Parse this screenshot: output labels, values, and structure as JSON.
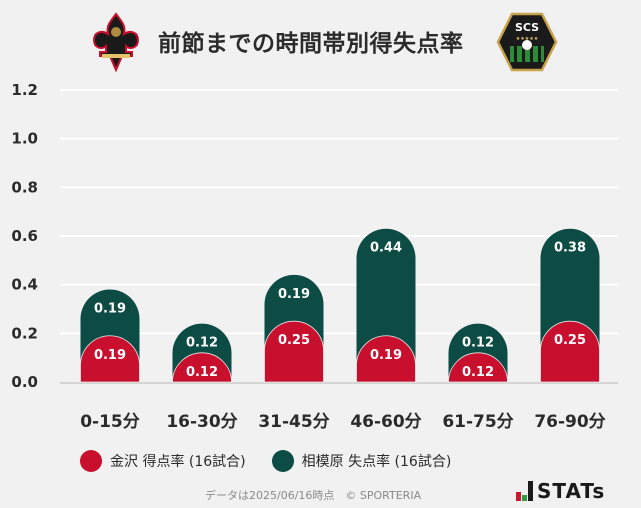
{
  "header": {
    "title": "前節までの時間帯別得失点率",
    "home_logo": "zweigen-kanazawa-crest-icon",
    "away_logo": "sc-sagamihara-crest-icon"
  },
  "colors": {
    "background": "#f1f1f1",
    "home": "#c8102e",
    "away": "#0d4b45",
    "grid": "#ffffff",
    "baseline": "#d4d4d4"
  },
  "chart_data": {
    "type": "bar",
    "title": "前節までの時間帯別得失点率",
    "xlabel": "",
    "ylabel": "",
    "ylim": [
      0,
      1.2
    ],
    "yticks": [
      "0.0",
      "0.2",
      "0.4",
      "0.6",
      "0.8",
      "1.0",
      "1.2"
    ],
    "grid": true,
    "stacked": true,
    "legend_position": "bottom",
    "categories": [
      "0-15分",
      "16-30分",
      "31-45分",
      "46-60分",
      "61-75分",
      "76-90分"
    ],
    "series": [
      {
        "name": "金沢 得点率 (16試合)",
        "color": "#c8102e",
        "values": [
          0.19,
          0.12,
          0.25,
          0.19,
          0.12,
          0.25
        ]
      },
      {
        "name": "相模原 失点率 (16試合)",
        "color": "#0d4b45",
        "values": [
          0.19,
          0.12,
          0.19,
          0.44,
          0.12,
          0.38
        ]
      }
    ]
  },
  "legend": [
    {
      "label": "金沢 得点率 (16試合)",
      "color": "#c8102e"
    },
    {
      "label": "相模原 失点率 (16試合)",
      "color": "#0d4b45"
    }
  ],
  "footer": {
    "note": "データは2025/06/16時点　© SPORTERIA",
    "brand": "STATs"
  }
}
